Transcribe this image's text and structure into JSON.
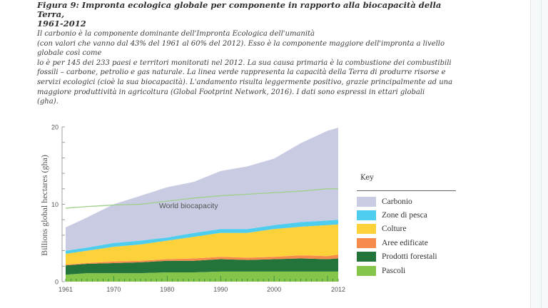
{
  "caption": {
    "title_line1": "Figura 9: Impronta ecologica globale per componente in rapporto alla biocapacità della Terra,",
    "title_line2": "1961-2012",
    "body_lines": [
      "Il carbonio è la componente dominante dell'Impronta Ecologica dell'umanità",
      "(con valori che vanno dal 43% del 1961 al 60% del 2012). Esso è la componente maggiore dell'impronta a livello",
      "globale così come",
      "lo è per 145 dei 233 paesi e territori monitorati nel 2012. La sua causa primaria è la combustione dei combustibili",
      "fossili – carbone, petrolio e gas naturale. La linea verde rappresenta la capacità della Terra di produrre risorse e",
      "servizi ecologici (cioè la sua biocapacità). L'andamento risulta leggermente positivo, grazie principalmente ad una",
      "maggiore produttività in agricoltura (Global Footprint Network, 2016). I dati sono espressi in ettari globali",
      "(gha)."
    ]
  },
  "chart_data": {
    "type": "area",
    "stacked": true,
    "ylabel": "Billions global hectares (gha)",
    "xlabel": "",
    "ylim": [
      0,
      20
    ],
    "xlim": [
      1961,
      2012
    ],
    "x_ticks": [
      "1961",
      "1970",
      "1980",
      "1990",
      "2000",
      "2012"
    ],
    "y_ticks": [
      "0",
      "10",
      "20"
    ],
    "grid": false,
    "legend_title": "Key",
    "legend_placement": "right",
    "x": [
      1961,
      1965,
      1970,
      1975,
      1980,
      1985,
      1990,
      1995,
      2000,
      2005,
      2010,
      2012
    ],
    "series": [
      {
        "name": "Pascoli",
        "color": "#84c54a",
        "values": [
          0.9,
          1.1,
          1.1,
          1.1,
          1.2,
          1.2,
          1.3,
          1.3,
          1.3,
          1.3,
          1.3,
          1.3
        ]
      },
      {
        "name": "Prodotti forestali",
        "color": "#23743a",
        "values": [
          1.2,
          1.2,
          1.3,
          1.4,
          1.5,
          1.5,
          1.6,
          1.5,
          1.6,
          1.7,
          1.6,
          1.7
        ]
      },
      {
        "name": "Aree edificate",
        "color": "#f68b4c",
        "values": [
          0.1,
          0.1,
          0.2,
          0.2,
          0.2,
          0.3,
          0.3,
          0.3,
          0.3,
          0.4,
          0.4,
          0.5
        ]
      },
      {
        "name": "Colture",
        "color": "#fdd13a",
        "values": [
          1.4,
          1.6,
          1.9,
          2.1,
          2.4,
          2.8,
          3.1,
          3.2,
          3.6,
          3.7,
          4.0,
          3.9
        ]
      },
      {
        "name": "Zone di pesca",
        "color": "#4fcdef",
        "values": [
          0.4,
          0.4,
          0.5,
          0.5,
          0.4,
          0.5,
          0.5,
          0.5,
          0.5,
          0.6,
          0.6,
          0.6
        ]
      },
      {
        "name": "Carbonio",
        "color": "#c9cbe3",
        "values": [
          3.0,
          3.9,
          5.0,
          5.8,
          6.5,
          6.6,
          7.5,
          8.1,
          8.6,
          10.2,
          11.6,
          11.9
        ]
      }
    ],
    "lines": [
      {
        "name": "World biocapacity",
        "color": "#9fd08a",
        "values": [
          9.5,
          9.7,
          9.9,
          10.0,
          10.4,
          10.8,
          11.1,
          11.3,
          11.5,
          11.7,
          12.0,
          12.0
        ]
      }
    ],
    "legend_order": [
      "Carbonio",
      "Zone di pesca",
      "Colture",
      "Aree edificate",
      "Prodotti forestali",
      "Pascoli"
    ]
  }
}
